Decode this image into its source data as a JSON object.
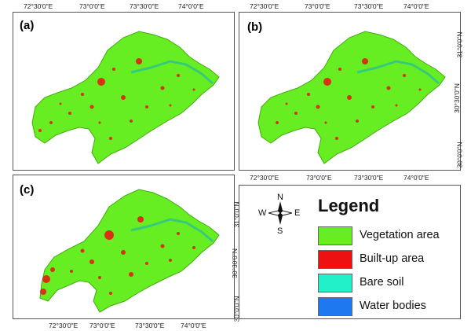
{
  "panels": [
    {
      "label": "(a)"
    },
    {
      "label": "(b)"
    },
    {
      "label": "(c)"
    }
  ],
  "top_ticks": [
    "72°30'0\"E",
    "73°0'0\"E",
    "73°30'0\"E",
    "74°0'0\"E"
  ],
  "middle_ticks": [
    "72°30'0\"E",
    "73°0'0\"E",
    "73°30'0\"E",
    "74°0'0\"E"
  ],
  "bottom_ticks": [
    "72°30'0\"E",
    "73°0'0\"E",
    "73°30'0\"E",
    "74°0'0\"E"
  ],
  "lat_ticks": [
    "31°0'0\"N",
    "30°30'0\"N",
    "30°0'0\"N"
  ],
  "compass": {
    "n": "N",
    "s": "S",
    "e": "E",
    "w": "W"
  },
  "legend": {
    "title": "Legend",
    "items": [
      {
        "label": "Vegetation area",
        "color": "#66ee22"
      },
      {
        "label": "Built-up area",
        "color": "#ee1111"
      },
      {
        "label": "Bare soil",
        "color": "#22f0c8"
      },
      {
        "label": "Water bodies",
        "color": "#1e78f0"
      }
    ]
  }
}
